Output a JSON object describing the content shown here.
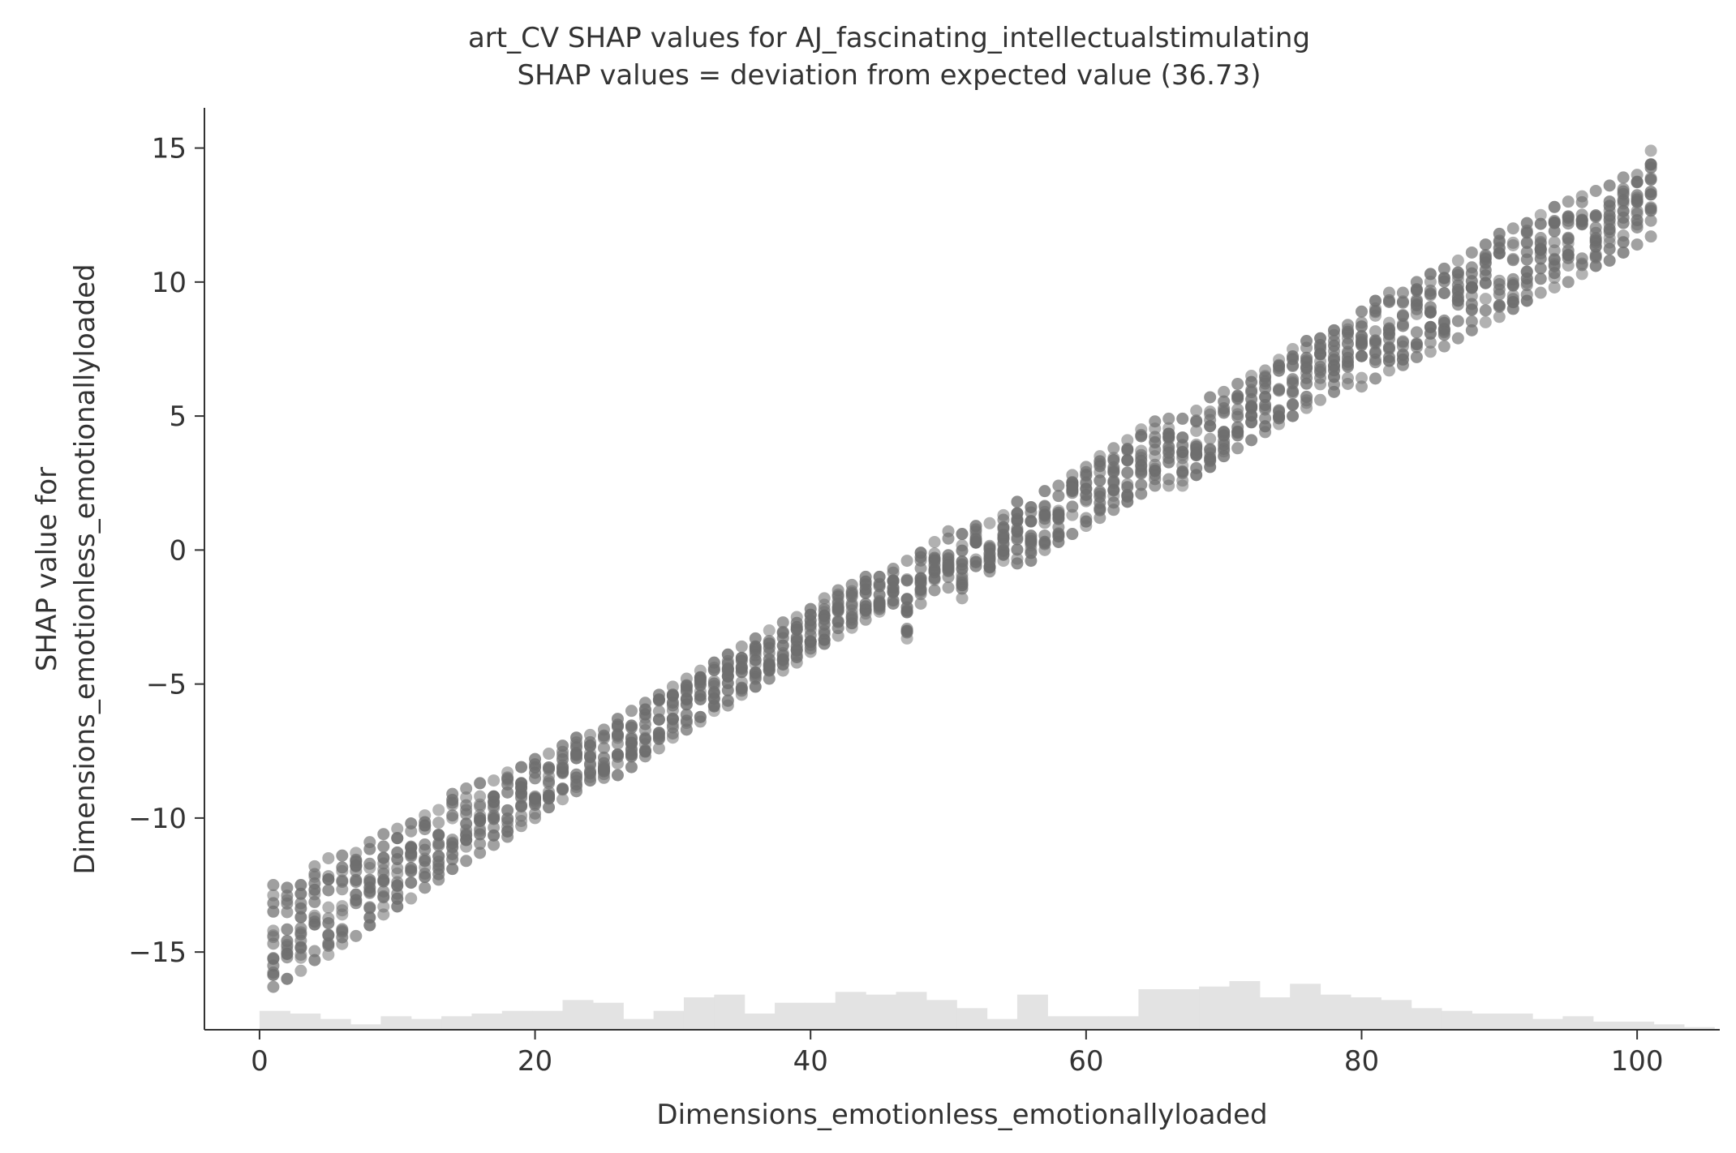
{
  "chart_data": {
    "type": "scatter",
    "title": "art_CV SHAP values for AJ_fascinating_intellectualstimulating",
    "subtitle": "SHAP values = deviation from expected value (36.73)",
    "xlabel": "Dimensions_emotionless_emotionallyloaded",
    "ylabel_line1": "SHAP value for",
    "ylabel_line2": "Dimensions_emotionless_emotionallyloaded",
    "xlim": [
      -4,
      106
    ],
    "ylim": [
      -17.9,
      16.5
    ],
    "xticks": [
      0,
      20,
      40,
      60,
      80,
      100
    ],
    "xtick_labels": [
      "0",
      "20",
      "40",
      "60",
      "80",
      "100"
    ],
    "yticks": [
      -15,
      -10,
      -5,
      0,
      5,
      10,
      15
    ],
    "ytick_labels": [
      "−15",
      "−10",
      "−5",
      "0",
      "5",
      "10",
      "15"
    ],
    "grid": false,
    "point_color": "#6e6e6e",
    "hist_color": "#e3e3e3",
    "series": [
      {
        "x": [
          1,
          2,
          3,
          4,
          5,
          6,
          7,
          8,
          9,
          10,
          11,
          12,
          13,
          14,
          15,
          16,
          17,
          18,
          19,
          20,
          21,
          22,
          23,
          24,
          25,
          26,
          27,
          28,
          29,
          30,
          31,
          32,
          33,
          34,
          35,
          36,
          37,
          38,
          39,
          40,
          41,
          42,
          43,
          44,
          45,
          46,
          47,
          48,
          49,
          50,
          51,
          52,
          53,
          54,
          55,
          56,
          57,
          58,
          59,
          60,
          61,
          62,
          63,
          64,
          65,
          66,
          67,
          68,
          69,
          70,
          71,
          72,
          73,
          74,
          75,
          76,
          77,
          78,
          79,
          80,
          81,
          82,
          83,
          84,
          85,
          86,
          87,
          88,
          89,
          90,
          91,
          92,
          93,
          94,
          95,
          96,
          97,
          98,
          99,
          100,
          101
        ],
        "y_min": [
          -16.3,
          -16.0,
          -15.7,
          -15.3,
          -15.1,
          -14.7,
          -14.4,
          -14.0,
          -13.6,
          -13.3,
          -13.0,
          -12.6,
          -12.3,
          -11.9,
          -11.6,
          -11.3,
          -11.0,
          -10.7,
          -10.3,
          -10.0,
          -9.6,
          -9.3,
          -9.0,
          -8.6,
          -8.5,
          -8.4,
          -8.1,
          -7.7,
          -7.4,
          -7.0,
          -6.7,
          -6.4,
          -6.0,
          -5.8,
          -5.4,
          -5.1,
          -4.8,
          -4.5,
          -4.2,
          -3.8,
          -3.5,
          -3.2,
          -2.9,
          -2.6,
          -2.3,
          -2.0,
          -3.3,
          -2.0,
          -1.5,
          -1.4,
          -1.8,
          -0.6,
          -0.8,
          -0.4,
          -0.5,
          -0.4,
          0.0,
          0.3,
          0.6,
          0.9,
          1.2,
          1.5,
          1.8,
          2.1,
          2.4,
          2.4,
          2.4,
          2.8,
          3.1,
          3.5,
          3.8,
          4.1,
          4.4,
          4.7,
          5.0,
          5.3,
          5.6,
          5.9,
          6.2,
          6.1,
          6.4,
          6.7,
          6.9,
          7.2,
          7.4,
          7.6,
          7.9,
          8.2,
          8.5,
          8.7,
          9.0,
          9.3,
          9.6,
          9.8,
          10.0,
          10.3,
          10.6,
          10.8,
          11.1,
          11.4,
          11.7
        ],
        "y_max": [
          -12.5,
          -12.6,
          -12.5,
          -11.8,
          -11.5,
          -11.4,
          -11.3,
          -10.9,
          -10.6,
          -10.4,
          -10.2,
          -9.9,
          -9.7,
          -9.1,
          -8.9,
          -8.7,
          -8.6,
          -8.3,
          -8.1,
          -7.8,
          -7.6,
          -7.3,
          -7.0,
          -6.9,
          -6.7,
          -6.3,
          -6.0,
          -5.7,
          -5.4,
          -5.1,
          -4.8,
          -4.5,
          -4.2,
          -3.9,
          -3.6,
          -3.3,
          -3.0,
          -2.7,
          -2.5,
          -2.2,
          -1.8,
          -1.5,
          -1.3,
          -1.0,
          -1.0,
          -0.7,
          -0.4,
          -0.1,
          0.3,
          0.7,
          0.6,
          0.9,
          1.0,
          1.3,
          1.8,
          1.6,
          2.2,
          2.4,
          2.8,
          3.1,
          3.5,
          3.8,
          4.1,
          4.5,
          4.8,
          4.9,
          4.9,
          5.2,
          5.7,
          5.9,
          6.2,
          6.5,
          6.7,
          7.1,
          7.5,
          7.8,
          7.9,
          8.2,
          8.4,
          8.9,
          9.3,
          9.6,
          9.6,
          10.0,
          10.3,
          10.5,
          10.8,
          11.1,
          11.4,
          11.8,
          12.0,
          12.2,
          12.5,
          12.8,
          13.0,
          13.2,
          13.4,
          13.6,
          13.9,
          14.0,
          14.9
        ]
      }
    ],
    "histogram": {
      "bin_start": 0,
      "bin_width": 2.2,
      "counts": [
        7,
        6,
        4,
        2,
        5,
        4,
        5,
        6,
        7,
        7,
        11,
        10,
        4,
        7,
        12,
        13,
        6,
        10,
        10,
        14,
        13,
        14,
        11,
        8,
        4,
        13,
        5,
        5,
        5,
        15,
        15,
        16,
        18,
        12,
        17,
        13,
        12,
        11,
        8,
        7,
        6,
        6,
        4,
        5,
        3,
        3,
        2,
        1,
        0,
        4
      ]
    }
  }
}
